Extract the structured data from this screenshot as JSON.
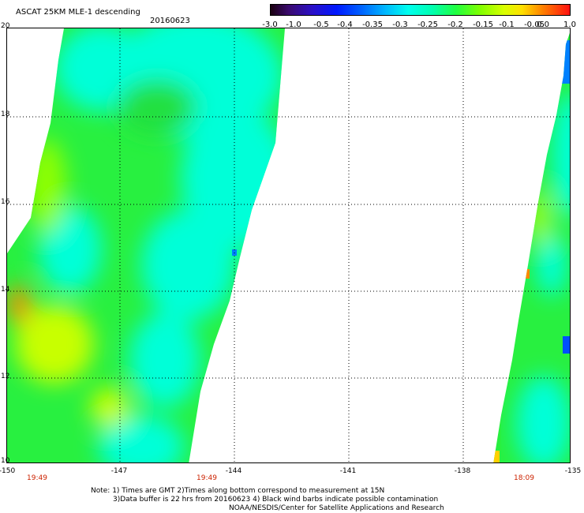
{
  "header": {
    "title": "ASCAT 25KM MLE-1 descending",
    "date": "20160623"
  },
  "colorbar": {
    "labels": [
      "-3.0",
      "-1.0",
      "-0.5",
      "-0.4",
      "-0.35",
      "-0.3",
      "-0.25",
      "-0.2",
      "-0.15",
      "-0.1",
      "-0.05",
      "0.0",
      "1.0"
    ]
  },
  "axes": {
    "latitudes": [
      "20",
      "18",
      "16",
      "14",
      "12",
      "10"
    ],
    "longitudes": [
      "-150",
      "-147",
      "-144",
      "-141",
      "-138",
      "-135"
    ],
    "pass_times": [
      "19:49",
      "19:49",
      "18:09"
    ]
  },
  "notes": {
    "line1": "Note: 1) Times are GMT 2)Times along bottom correspond to measurement at 15N",
    "line2": "3)Data buffer is 22 hrs from 20160623 4) Black wind barbs indicate possible contamination",
    "line3": "NOAA/NESDIS/Center for Satellite Applications and Research"
  },
  "colors": {
    "cyan": "#00ffd8",
    "green": "#28f040",
    "light_green": "#80ff00",
    "yellow": "#e8ff00",
    "orange": "#ff8800",
    "blue": "#0080ff",
    "time_label": "#cc2200"
  }
}
